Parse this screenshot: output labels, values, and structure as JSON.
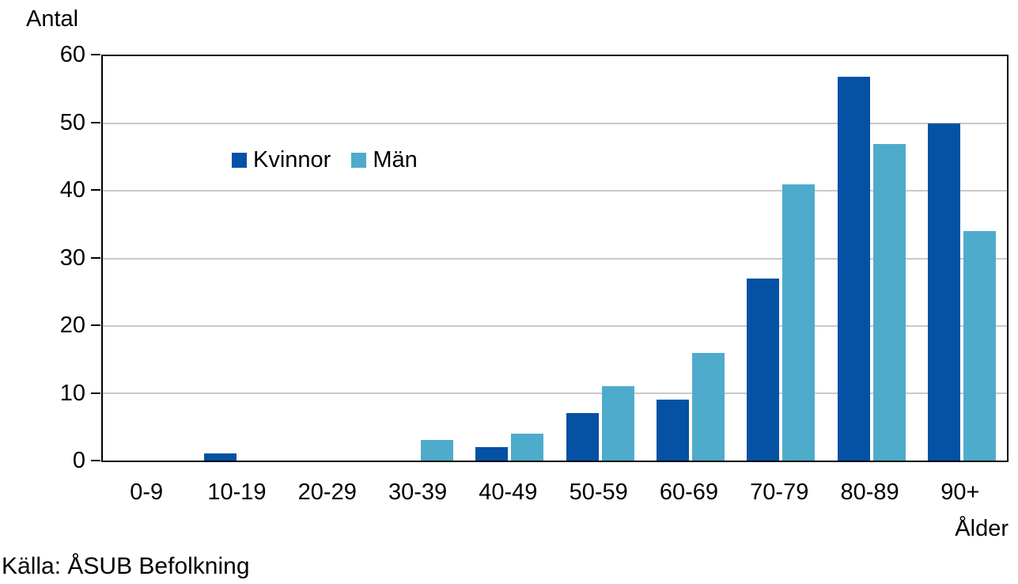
{
  "chart_data": {
    "type": "bar",
    "title": "Antal",
    "xlabel": "Ålder",
    "ylabel": "Antal",
    "categories": [
      "0-9",
      "10-19",
      "20-29",
      "30-39",
      "40-49",
      "50-59",
      "60-69",
      "70-79",
      "80-89",
      "90+"
    ],
    "series": [
      {
        "name": "Kvinnor",
        "color": "#0551A4",
        "values": [
          0,
          1,
          0,
          0,
          2,
          7,
          9,
          27,
          57,
          50
        ]
      },
      {
        "name": "Män",
        "color": "#4FABCB",
        "values": [
          0,
          0,
          0,
          3,
          4,
          11,
          16,
          41,
          47,
          34
        ]
      }
    ],
    "ylim": [
      0,
      60
    ],
    "yticks": [
      0,
      10,
      20,
      30,
      40,
      50,
      60
    ],
    "grid": true,
    "legend_position": "inside-top-left"
  },
  "source": "Källa: ÅSUB Befolkning",
  "colors": {
    "kvinnor": "#0551A4",
    "man": "#4FABCB",
    "gridline": "#C9C9C9",
    "axis": "#000000",
    "text": "#000000",
    "background": "#FFFFFF"
  }
}
